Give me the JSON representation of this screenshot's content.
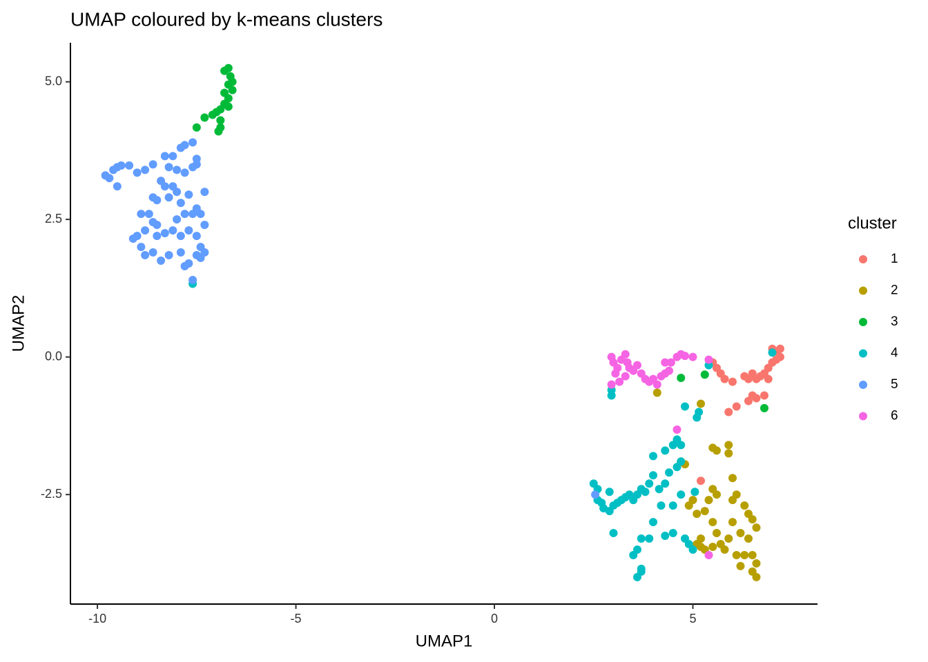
{
  "chart_data": {
    "type": "scatter",
    "title": "UMAP coloured by k-means clusters",
    "x_label": "UMAP1",
    "y_label": "UMAP2",
    "legend_title": "cluster",
    "legend": "right",
    "xlim": [
      -10.68,
      8.14
    ],
    "ylim": [
      -4.49,
      5.71
    ],
    "xticks": [
      -10,
      -5,
      0,
      5
    ],
    "yticks": [
      -2.5,
      {
        "value": 0,
        "label": "0.0"
      },
      2.5,
      {
        "value": 5,
        "label": "5.0"
      }
    ],
    "series": [
      {
        "name": "1",
        "color": "#F8766D",
        "x": [
          5.5,
          5.6,
          5.7,
          5.8,
          6.0,
          6.3,
          6.4,
          6.5,
          6.6,
          6.7,
          6.8,
          6.9,
          7.0,
          7.1,
          7.2,
          7.2,
          7.0,
          7.1,
          6.9,
          6.5,
          6.4,
          6.1,
          5.9,
          6.8,
          6.6,
          5.2
        ],
        "values": [
          -0.1,
          -0.2,
          -0.3,
          -0.4,
          -0.45,
          -0.35,
          -0.4,
          -0.3,
          -0.4,
          -0.35,
          -0.3,
          -0.2,
          -0.1,
          0.1,
          0,
          0.15,
          0.15,
          -0.05,
          -0.4,
          -0.7,
          -0.8,
          -0.9,
          -1.0,
          -0.7,
          -0.75,
          -2.25
        ]
      },
      {
        "name": "2",
        "color": "#B79F00",
        "x": [
          5.5,
          5.6,
          5.9,
          5.9,
          5.2,
          4.1,
          4.7,
          4.8,
          5.5,
          5.6,
          5.4,
          5.3,
          5.5,
          5.6,
          5.7,
          5.8,
          5.9,
          6.0,
          6.0,
          6.1,
          6.3,
          6.4,
          6.5,
          6.6,
          6.4,
          6.5,
          6.3,
          6.2,
          6.5,
          6.6,
          6.6,
          5.1,
          5.2,
          5.3,
          5.5,
          5.0,
          5.1,
          6.2,
          6.1,
          6.0,
          5.2,
          4.9
        ],
        "values": [
          -1.65,
          -1.7,
          -1.6,
          -1.75,
          -0.85,
          -0.65,
          -1.9,
          -1.95,
          -2.4,
          -2.5,
          -2.6,
          -2.8,
          -3.0,
          -3.2,
          -3.4,
          -3.5,
          -3.3,
          -3.0,
          -2.6,
          -2.5,
          -2.7,
          -2.85,
          -2.95,
          -3.1,
          -3.3,
          -3.6,
          -3.6,
          -3.8,
          -3.9,
          -4.0,
          -3.75,
          -3.4,
          -3.45,
          -3.5,
          -3.45,
          -2.6,
          -2.85,
          -3.2,
          -3.6,
          -2.2,
          -3.3,
          -2.7
        ]
      },
      {
        "name": "3",
        "color": "#00BA38",
        "x": [
          -6.8,
          -6.7,
          -6.65,
          -6.6,
          -6.7,
          -6.6,
          -6.8,
          -6.7,
          -6.8,
          -6.7,
          -6.9,
          -7.0,
          -7.1,
          -7.3,
          -7.5,
          -6.9,
          -6.9,
          -6.95,
          4.7,
          5.3,
          6.8
        ],
        "values": [
          5.2,
          5.25,
          5.1,
          5.0,
          4.95,
          4.85,
          4.8,
          4.7,
          4.6,
          4.55,
          4.5,
          4.45,
          4.4,
          4.35,
          4.17,
          4.3,
          4.17,
          4.1,
          -0.38,
          -0.32,
          -0.93
        ]
      },
      {
        "name": "4",
        "color": "#00BFC4",
        "x": [
          2.5,
          2.6,
          2.6,
          2.7,
          2.75,
          2.9,
          3.0,
          3.1,
          3.2,
          3.3,
          3.4,
          3.5,
          3.6,
          3.7,
          3.8,
          3.9,
          4.0,
          4.15,
          4.3,
          4.4,
          4.6,
          4.7,
          4.5,
          4.6,
          4.7,
          4.3,
          4.0,
          4.2,
          4.0,
          3.9,
          3.7,
          3.6,
          3.5,
          3.7,
          3.6,
          3.7,
          4.3,
          4.5,
          4.8,
          4.9,
          5.0,
          4.7,
          4.5,
          5.15,
          5.1,
          4.8,
          2.95,
          2.95,
          5.4,
          7.0,
          3.0,
          -7.6,
          2.9,
          5.05
        ],
        "values": [
          -2.3,
          -2.4,
          -2.6,
          -2.65,
          -2.75,
          -2.8,
          -2.7,
          -2.65,
          -2.6,
          -2.55,
          -2.5,
          -2.6,
          -2.5,
          -2.4,
          -2.45,
          -2.3,
          -2.15,
          -2.4,
          -2.3,
          -2.1,
          -2.0,
          -1.9,
          -1.6,
          -1.5,
          -1.6,
          -1.7,
          -1.8,
          -2.7,
          -3.0,
          -3.3,
          -3.3,
          -3.5,
          -3.6,
          -3.9,
          -4.0,
          -3.85,
          -3.25,
          -3.2,
          -3.3,
          -3.4,
          -3.5,
          -2.5,
          -2.7,
          -1.0,
          -1.1,
          -0.9,
          -0.6,
          -0.7,
          -0.15,
          0.08,
          -3.2,
          1.33,
          -2.45,
          -2.45
        ]
      },
      {
        "name": "5",
        "color": "#619CFF",
        "x": [
          -9.8,
          -9.7,
          -9.6,
          -9.5,
          -9.4,
          -9.2,
          -9.0,
          -8.8,
          -8.6,
          -8.3,
          -8.1,
          -7.9,
          -7.8,
          -7.5,
          -7.5,
          -7.6,
          -8.2,
          -8.0,
          -7.8,
          -9.5,
          -8.4,
          -8.3,
          -7.3,
          -8.9,
          -8.7,
          -8.5,
          -8.6,
          -8.8,
          -9.0,
          -9.1,
          -8.9,
          -8.8,
          -8.6,
          -8.4,
          -8.2,
          -7.9,
          -7.7,
          -7.8,
          -7.6,
          -7.9,
          -8.0,
          -7.8,
          -7.6,
          -7.4,
          -7.3,
          -7.5,
          -7.4,
          -7.5,
          -7.7,
          -7.9,
          -8.2,
          -8.5,
          -8.3,
          -8.1,
          -7.7,
          -7.3,
          -7.4,
          -7.5,
          -8.6,
          -8.0,
          -7.6,
          -8.1,
          -8.5,
          2.54
        ],
        "values": [
          3.3,
          3.25,
          3.4,
          3.45,
          3.48,
          3.48,
          3.35,
          3.4,
          3.5,
          3.65,
          3.65,
          3.8,
          3.85,
          3.6,
          3.5,
          3.9,
          3.45,
          3.4,
          3.35,
          3.1,
          3.2,
          3.1,
          3.0,
          2.6,
          2.6,
          2.4,
          2.45,
          2.3,
          2.2,
          2.15,
          2.0,
          1.85,
          1.9,
          1.75,
          1.85,
          1.9,
          1.7,
          1.65,
          1.4,
          2.2,
          2.5,
          2.6,
          2.6,
          2.6,
          2.4,
          2.2,
          2.0,
          1.85,
          2.95,
          2.8,
          2.9,
          2.85,
          2.25,
          2.3,
          2.3,
          1.9,
          1.8,
          2.7,
          2.9,
          3.0,
          3.45,
          3.1,
          2.2,
          -2.5
        ]
      },
      {
        "name": "6",
        "color": "#F564E3",
        "x": [
          2.95,
          3.0,
          3.1,
          3.05,
          3.2,
          3.3,
          3.35,
          3.4,
          3.5,
          3.6,
          3.3,
          3.7,
          3.8,
          3.9,
          4.0,
          4.1,
          4.2,
          4.3,
          4.4,
          4.3,
          4.45,
          4.6,
          4.7,
          4.8,
          5.0,
          5.4,
          3.15,
          2.95,
          4.6,
          5.4
        ],
        "values": [
          0,
          -0.1,
          -0.2,
          -0.3,
          -0.05,
          0.05,
          -0.1,
          -0.2,
          -0.25,
          -0.15,
          -0.35,
          -0.3,
          -0.4,
          -0.45,
          -0.4,
          -0.5,
          -0.35,
          -0.3,
          -0.25,
          -0.1,
          -0.1,
          0,
          0.05,
          0.02,
          0,
          -0.05,
          -0.45,
          -0.5,
          -1.32,
          -3.6
        ]
      }
    ]
  }
}
